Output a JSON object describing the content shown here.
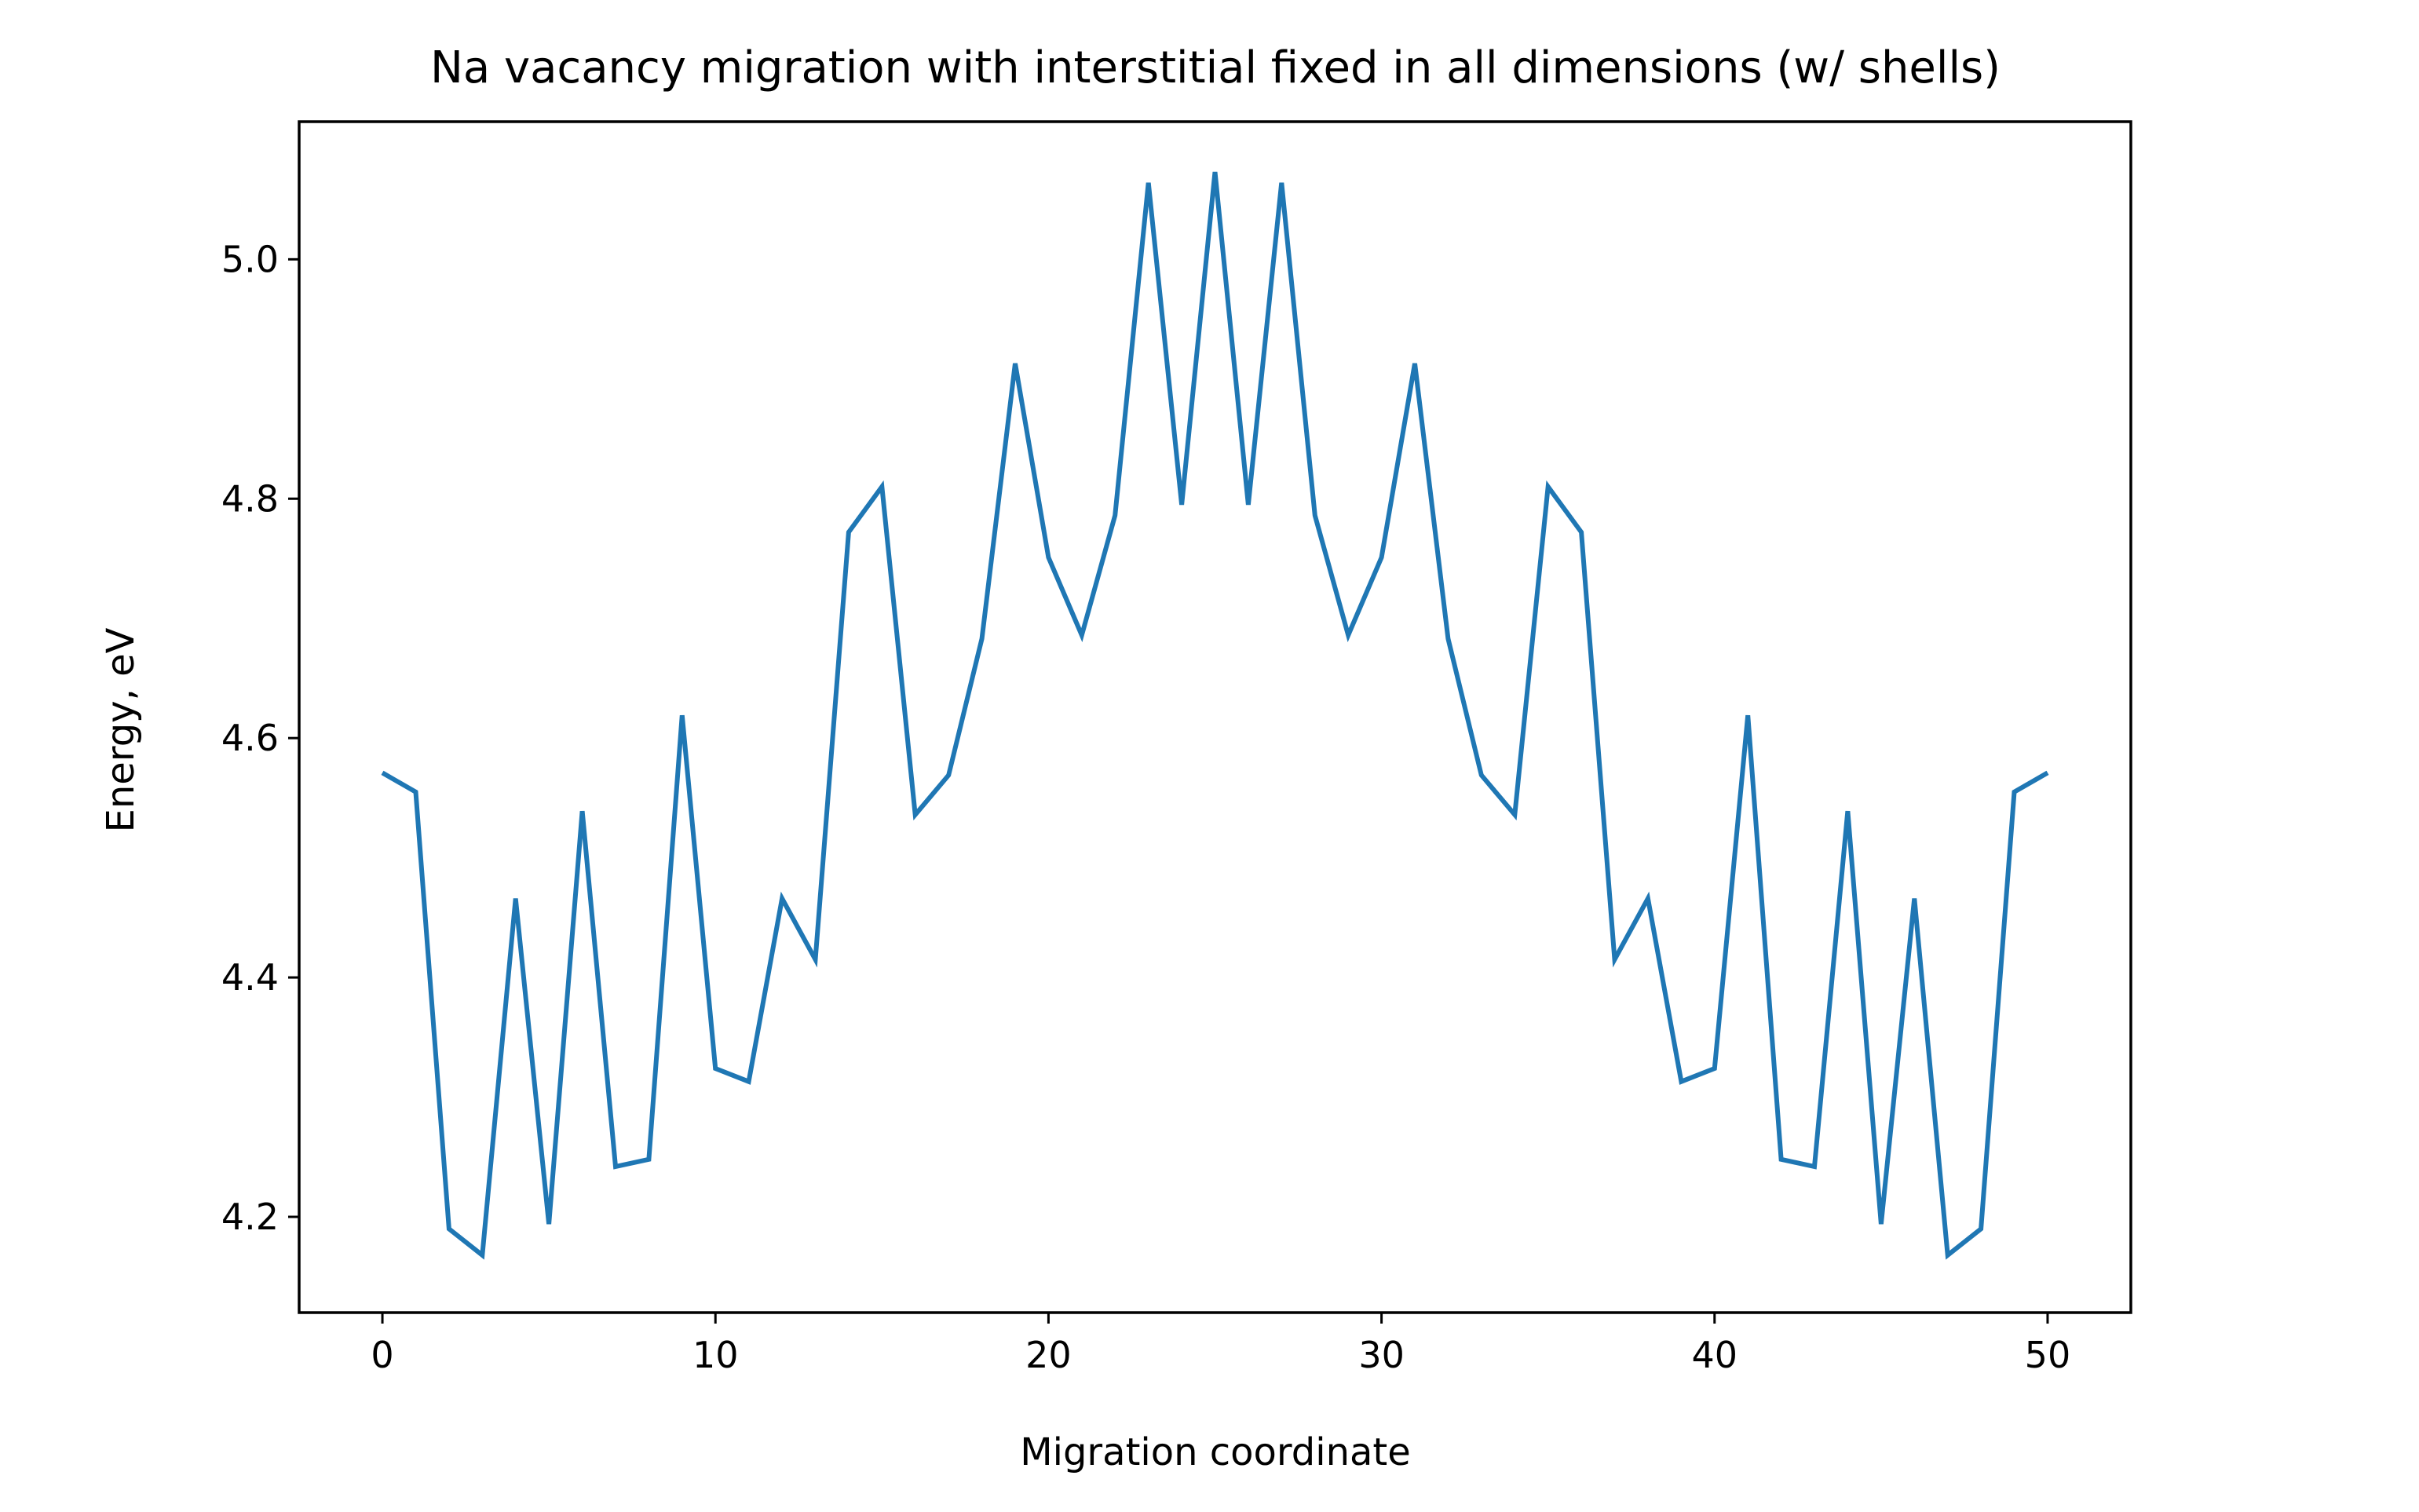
{
  "chart_data": {
    "type": "line",
    "title": "Na vacancy migration with interstitial fixed in all dimensions (w/ shells)",
    "xlabel": "Migration coordinate",
    "ylabel": "Energy, eV",
    "xlim": [
      -2.5,
      52.5
    ],
    "ylim": [
      4.12,
      5.115
    ],
    "x_ticks": [
      0,
      10,
      20,
      30,
      40,
      50
    ],
    "y_ticks": [
      4.2,
      4.4,
      4.6,
      4.8,
      5.0
    ],
    "x_tick_labels": [
      "0",
      "10",
      "20",
      "30",
      "40",
      "50"
    ],
    "y_tick_labels": [
      "4.2",
      "4.4",
      "4.6",
      "4.8",
      "5.0"
    ],
    "grid": false,
    "series": [
      {
        "color": "#1f77b4",
        "x": [
          0,
          1,
          2,
          3,
          4,
          5,
          6,
          7,
          8,
          9,
          10,
          11,
          12,
          13,
          14,
          15,
          16,
          17,
          18,
          19,
          20,
          21,
          22,
          23,
          24,
          25,
          26,
          27,
          28,
          29,
          30,
          31,
          32,
          33,
          34,
          35,
          36,
          37,
          38,
          39,
          40,
          41,
          42,
          43,
          44,
          45,
          46,
          47,
          48,
          49,
          50
        ],
        "values": [
          4.571,
          4.555,
          4.19,
          4.168,
          4.466,
          4.194,
          4.539,
          4.242,
          4.248,
          4.619,
          4.324,
          4.313,
          4.466,
          4.415,
          4.772,
          4.81,
          4.536,
          4.569,
          4.683,
          4.913,
          4.751,
          4.686,
          4.786,
          5.064,
          4.795,
          5.073,
          4.795,
          5.064,
          4.786,
          4.686,
          4.751,
          4.913,
          4.683,
          4.569,
          4.536,
          4.81,
          4.772,
          4.415,
          4.466,
          4.313,
          4.324,
          4.619,
          4.248,
          4.242,
          4.539,
          4.194,
          4.466,
          4.168,
          4.19,
          4.555,
          4.571
        ]
      }
    ]
  }
}
